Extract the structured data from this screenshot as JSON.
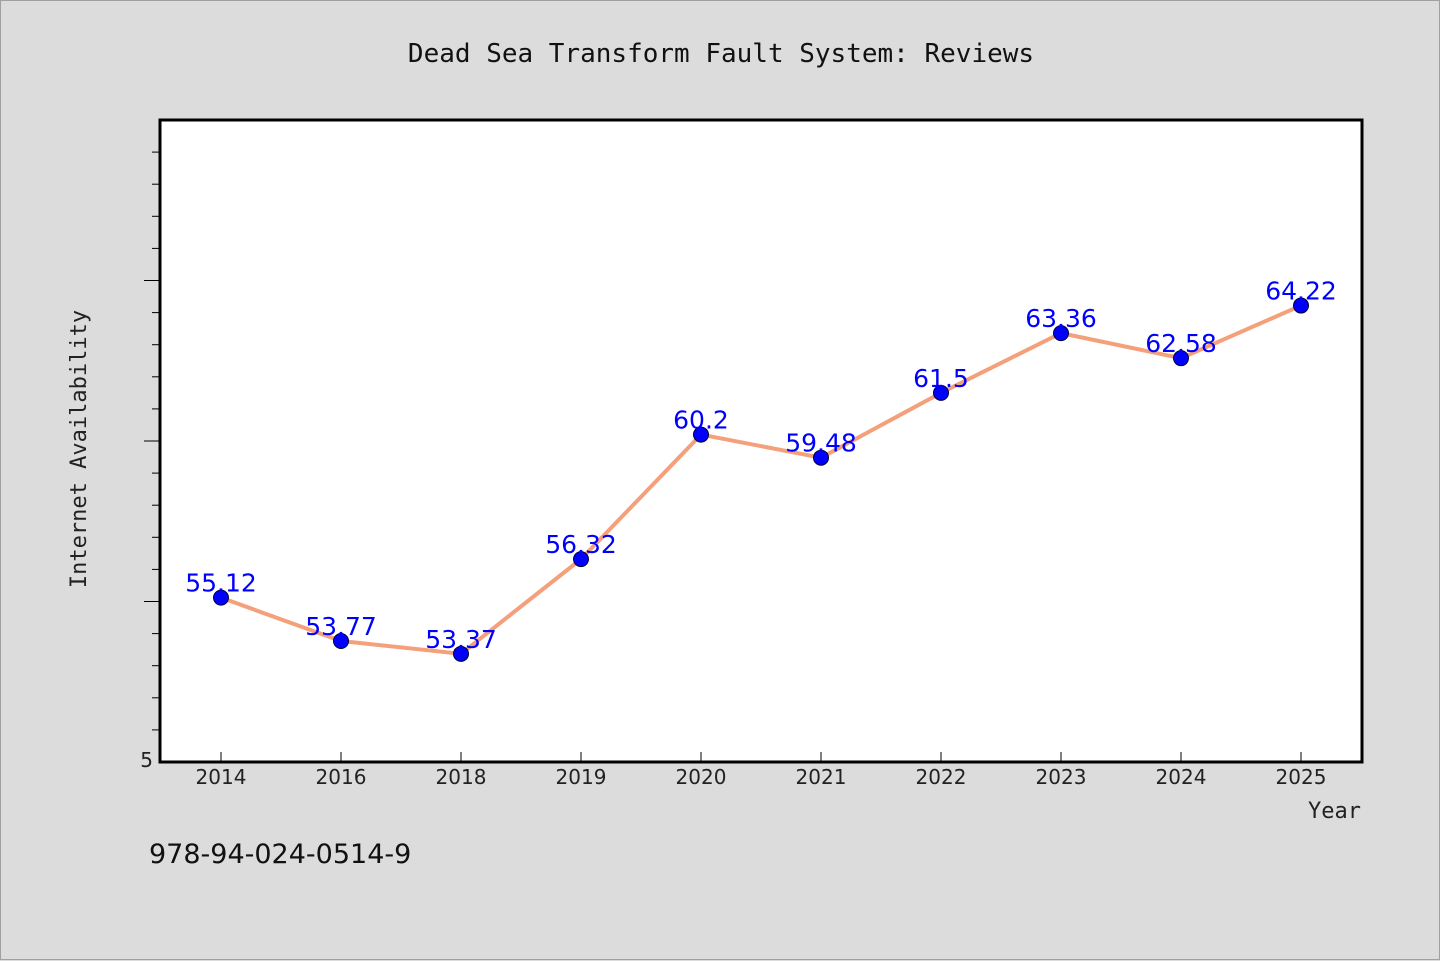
{
  "chart_data": {
    "type": "line",
    "title": "Dead Sea Transform Fault System: Reviews",
    "xlabel": "Year",
    "ylabel": "Internet Availability",
    "categories": [
      "2014",
      "2016",
      "2018",
      "2019",
      "2020",
      "2021",
      "2022",
      "2023",
      "2024",
      "2025"
    ],
    "series": [
      {
        "values": [
          55.12,
          53.77,
          53.37,
          56.32,
          60.2,
          59.48,
          61.5,
          63.36,
          62.58,
          64.22
        ],
        "labels": [
          "55.12",
          "53.77",
          "53.37",
          "56.32",
          "60.2",
          "59.48",
          "61.5",
          "63.36",
          "62.58",
          "64.22"
        ]
      }
    ],
    "y_tick_labels": [
      "5"
    ],
    "ylim": [
      50,
      70
    ],
    "grid": false,
    "line_color": "#f4a07a",
    "marker_color": "#0000ff",
    "label_color": "#0000ff",
    "plot_background": "#ffffff",
    "page_background": "#dcdcdc"
  },
  "footer_text": "978-94-024-0514-9"
}
